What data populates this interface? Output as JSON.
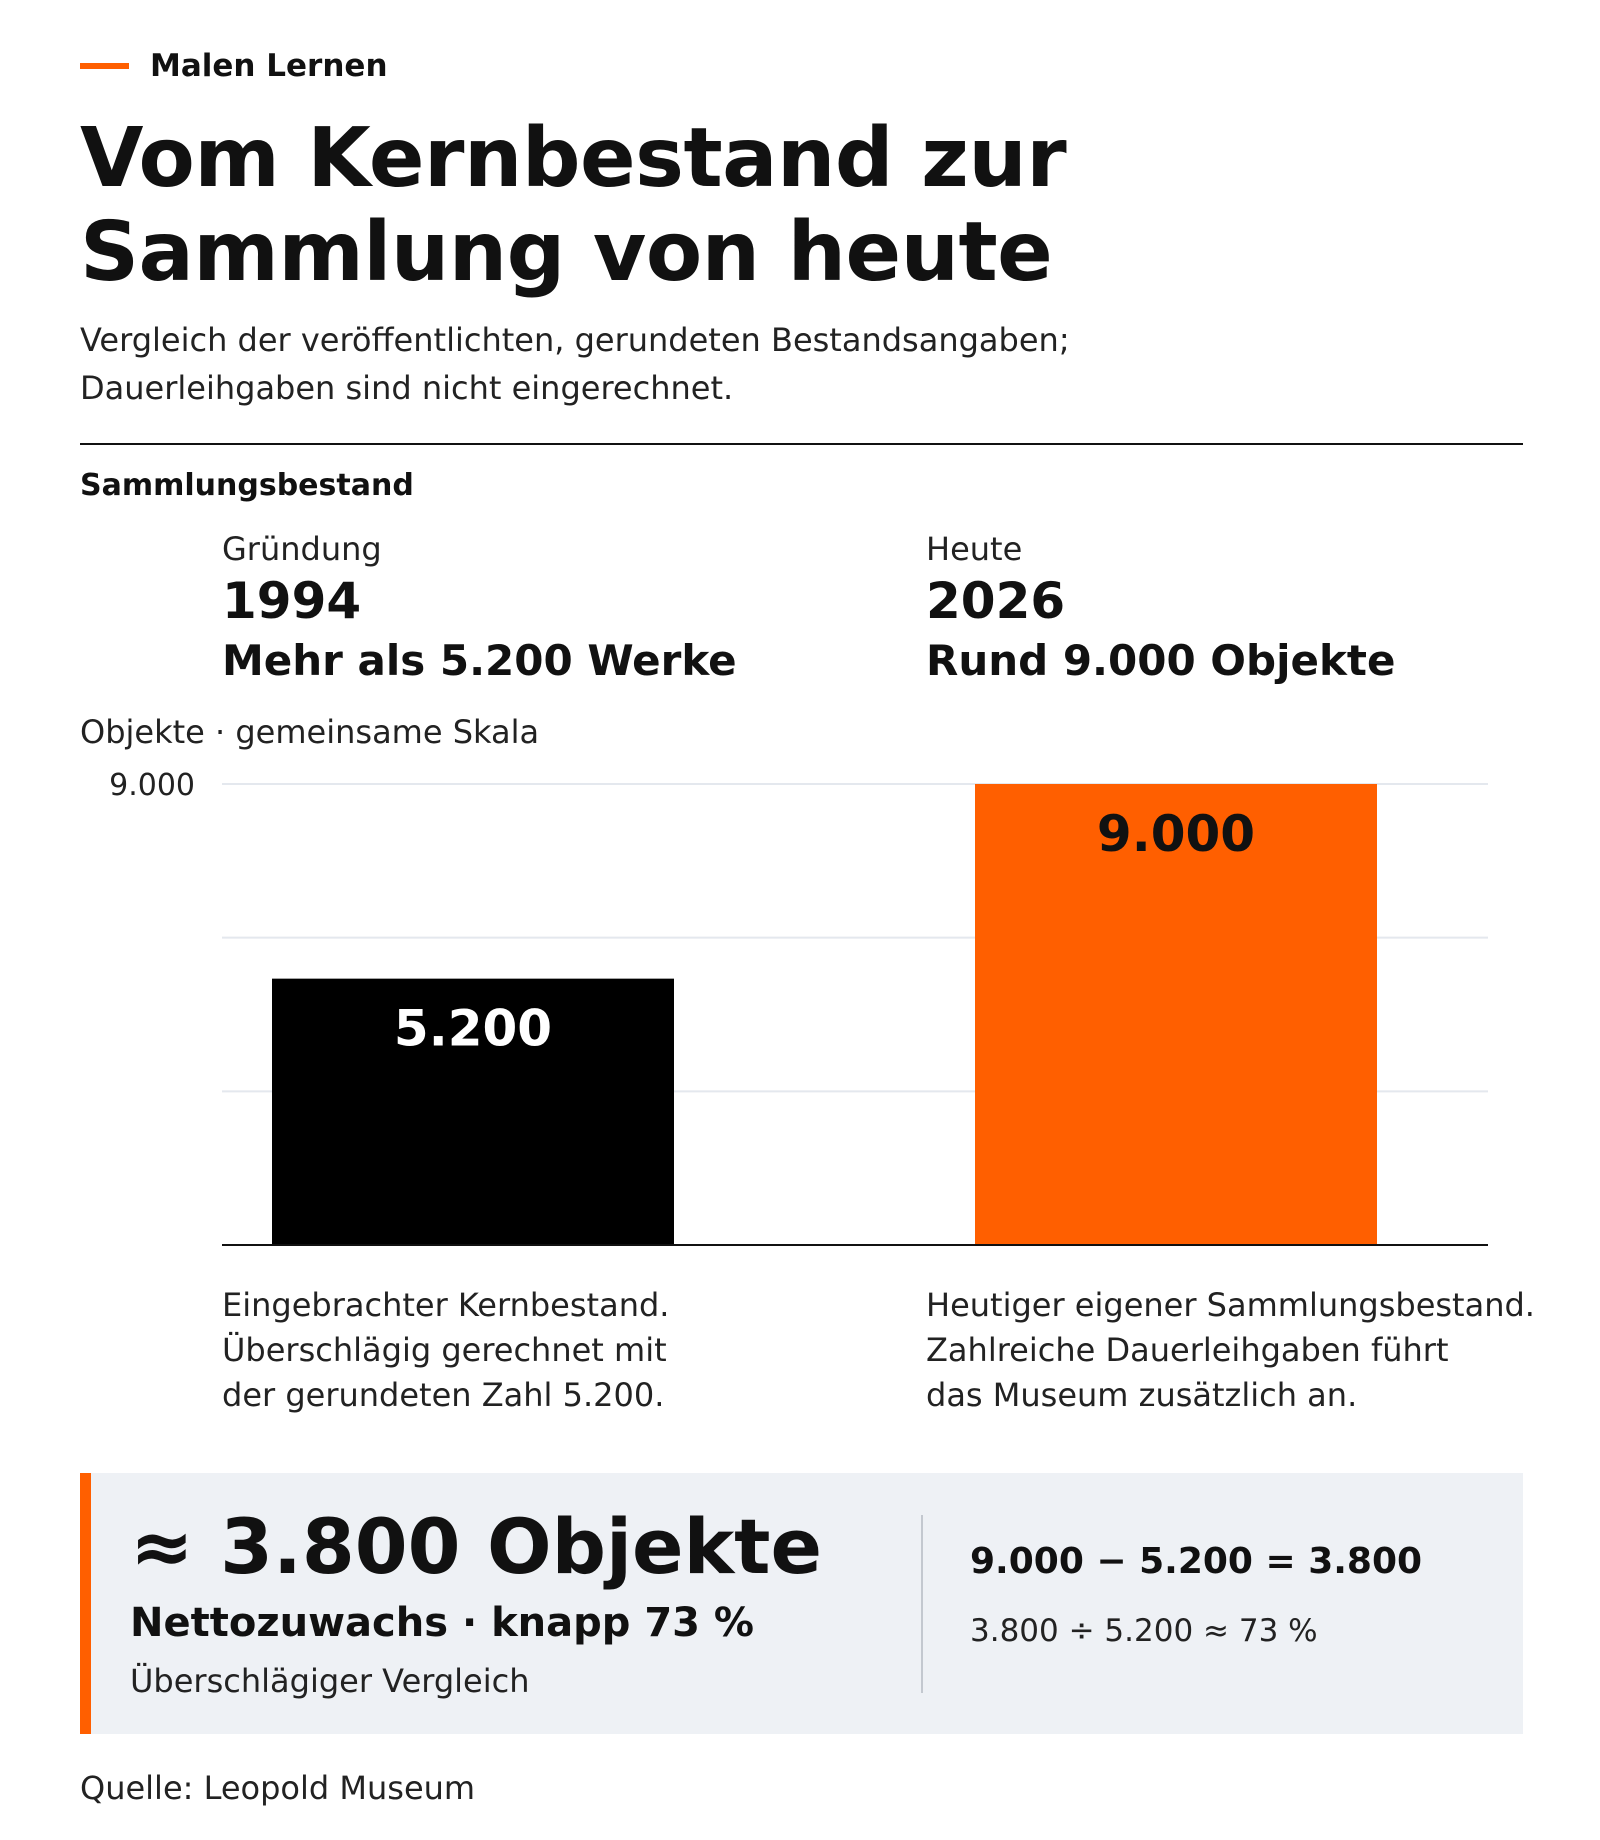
{
  "header": {
    "kicker": "Malen Lernen",
    "title_line1": "Vom Kernbestand zur",
    "title_line2": "Sammlung von heute",
    "subtitle_line1": "Vergleich der veröffentlichten, gerundeten Bestandsangaben;",
    "subtitle_line2": "Dauerleihgaben sind nicht eingerechnet."
  },
  "section_title": "Sammlungsbestand",
  "columns": [
    {
      "label": "Gründung",
      "year": "1994",
      "description": "Mehr als 5.200 Werke",
      "note_lines": [
        "Eingebrachter Kernbestand.",
        "Überschlägig gerechnet mit",
        "der gerundeten Zahl 5.200."
      ]
    },
    {
      "label": "Heute",
      "year": "2026",
      "description": "Rund 9.000 Objekte",
      "note_lines": [
        "Heutiger eigener Sammlungsbestand.",
        "Zahlreiche Dauerleihgaben führt",
        "das Museum zusätzlich an."
      ]
    }
  ],
  "chart_data": {
    "type": "bar",
    "categories": [
      "1994",
      "2026"
    ],
    "values": [
      5200,
      9000
    ],
    "value_labels": [
      "5.200",
      "9.000"
    ],
    "colors": [
      "#000000",
      "#ff5f00"
    ],
    "label_colors": [
      "#ffffff",
      "#111111"
    ],
    "ylabel": "Objekte · gemeinsame Skala",
    "ylim": [
      0,
      9000
    ],
    "y_ticks": [
      {
        "value": 9000,
        "label": "9.000"
      }
    ],
    "gridlines": [
      3000,
      6000,
      9000
    ],
    "grid": true
  },
  "summary": {
    "headline": "≈ 3.800 Objekte",
    "subline": "Nettozuwachs · knapp 73 %",
    "note": "Überschlägiger Vergleich",
    "equation": "9.000 − 5.200 = 3.800",
    "ratio": "3.800 ÷ 5.200 ≈ 73 %",
    "accent_color": "#ff5f00"
  },
  "source": "Quelle: Leopold Museum"
}
